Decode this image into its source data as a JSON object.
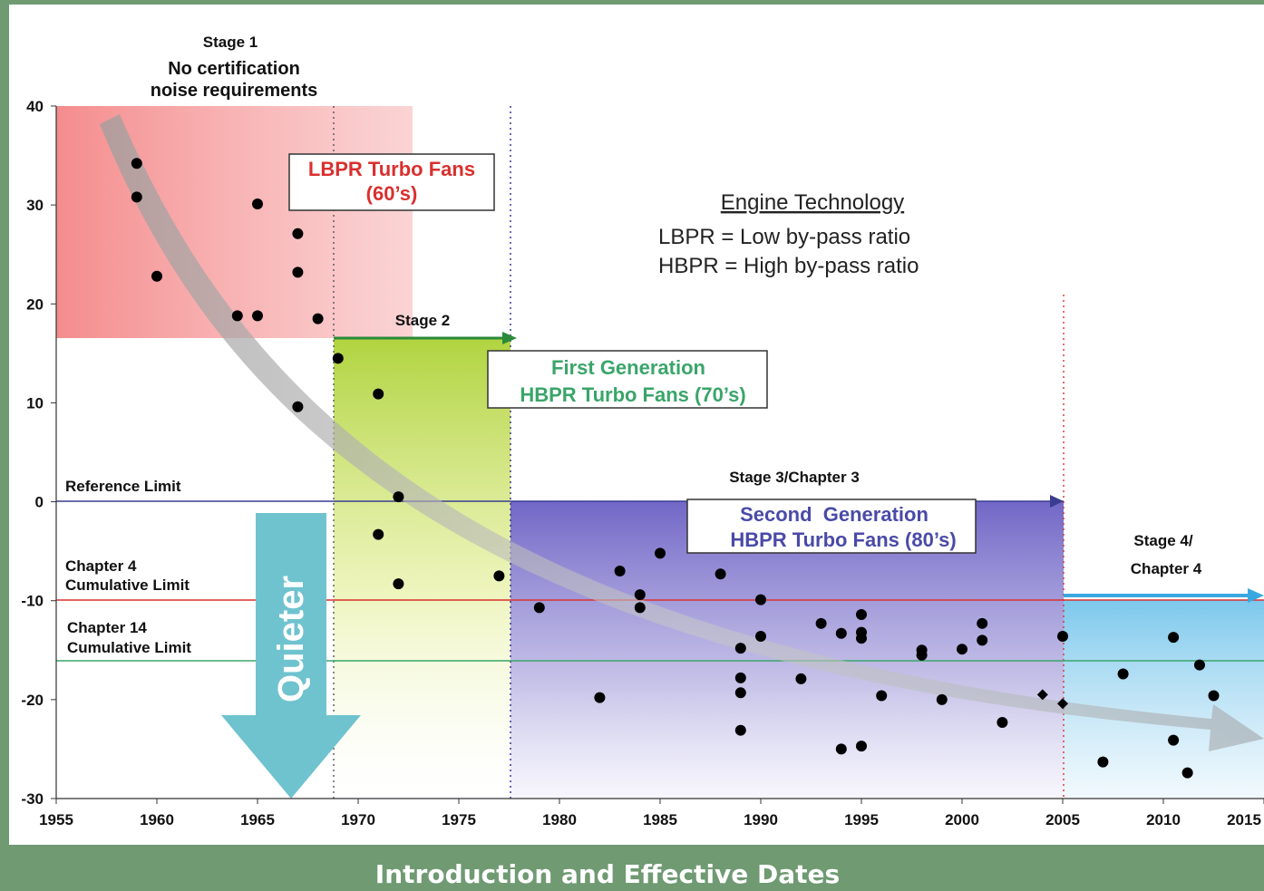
{
  "caption": "Introduction and Effective Dates",
  "chart_data": {
    "type": "scatter",
    "xlim": [
      1955,
      2015
    ],
    "ylim": [
      -30,
      40
    ],
    "x_ticks": [
      "1955",
      "1960",
      "1965",
      "1970",
      "1975",
      "1980",
      "1985",
      "1990",
      "1995",
      "2000",
      "2005",
      "2010",
      "2015"
    ],
    "y_ticks": [
      "40",
      "30",
      "20",
      "10",
      "0",
      "-10",
      "-20",
      "-30"
    ],
    "points": [
      {
        "x": 1959,
        "y": 34.2
      },
      {
        "x": 1959,
        "y": 30.8
      },
      {
        "x": 1960,
        "y": 22.8
      },
      {
        "x": 1964,
        "y": 18.8
      },
      {
        "x": 1965,
        "y": 18.8
      },
      {
        "x": 1965,
        "y": 30.1
      },
      {
        "x": 1967,
        "y": 27.1
      },
      {
        "x": 1967,
        "y": 23.2
      },
      {
        "x": 1968,
        "y": 18.5
      },
      {
        "x": 1967,
        "y": 9.6
      },
      {
        "x": 1969,
        "y": 14.5
      },
      {
        "x": 1971,
        "y": 10.9
      },
      {
        "x": 1972,
        "y": 0.5
      },
      {
        "x": 1971,
        "y": -3.3
      },
      {
        "x": 1972,
        "y": -8.3
      },
      {
        "x": 1977,
        "y": -7.5
      },
      {
        "x": 1979,
        "y": -10.7
      },
      {
        "x": 1982,
        "y": -19.8
      },
      {
        "x": 1983,
        "y": -7.0
      },
      {
        "x": 1984,
        "y": -9.4
      },
      {
        "x": 1984,
        "y": -10.7
      },
      {
        "x": 1985,
        "y": -5.2
      },
      {
        "x": 1988,
        "y": -7.3
      },
      {
        "x": 1989,
        "y": -14.8
      },
      {
        "x": 1989,
        "y": -17.8
      },
      {
        "x": 1989,
        "y": -19.3
      },
      {
        "x": 1989,
        "y": -23.1
      },
      {
        "x": 1990,
        "y": -9.9
      },
      {
        "x": 1990,
        "y": -13.6
      },
      {
        "x": 1992,
        "y": -17.9
      },
      {
        "x": 1993,
        "y": -12.3
      },
      {
        "x": 1994,
        "y": -13.3
      },
      {
        "x": 1994,
        "y": -25.0
      },
      {
        "x": 1995,
        "y": -11.4
      },
      {
        "x": 1995,
        "y": -13.2
      },
      {
        "x": 1995,
        "y": -13.8
      },
      {
        "x": 1995,
        "y": -24.7
      },
      {
        "x": 1996,
        "y": -19.6
      },
      {
        "x": 1998,
        "y": -15.0
      },
      {
        "x": 1998,
        "y": -15.5
      },
      {
        "x": 1999,
        "y": -20.0
      },
      {
        "x": 2000,
        "y": -14.9
      },
      {
        "x": 2001,
        "y": -12.3
      },
      {
        "x": 2001,
        "y": -14.0
      },
      {
        "x": 2002,
        "y": -22.3
      },
      {
        "x": 2005,
        "y": -13.6
      },
      {
        "x": 2007,
        "y": -26.3
      },
      {
        "x": 2008,
        "y": -17.4
      },
      {
        "x": 2010.5,
        "y": -13.7
      },
      {
        "x": 2010.5,
        "y": -24.1
      },
      {
        "x": 2011.2,
        "y": -27.4
      },
      {
        "x": 2011.8,
        "y": -16.5
      },
      {
        "x": 2012.5,
        "y": -19.6
      }
    ],
    "diamonds": [
      {
        "x": 2004,
        "y": -19.5
      },
      {
        "x": 2005,
        "y": -20.4
      }
    ],
    "reference_lines": [
      {
        "label": "Reference Limit",
        "y": 0,
        "color": "#3a3d8f"
      },
      {
        "label": "Chapter 4\nCumulative Limit",
        "y": -10,
        "color": "#d9302f"
      },
      {
        "label": "Chapter 14\nCumulative Limit",
        "y": -16,
        "color": "#3aa56a"
      }
    ],
    "regions": [
      {
        "name": "stage1",
        "x0": 1955,
        "x1": 1973,
        "y0": 16.5,
        "y1": 40,
        "color": "#f07a7a"
      },
      {
        "name": "stage2",
        "x0": 1969,
        "x1": 1978,
        "y0": -30,
        "y1": 16.5,
        "color": "#b8d94a"
      },
      {
        "name": "stage3",
        "x0": 1978,
        "x1": 2006,
        "y0": -30,
        "y1": 0,
        "color": "#7368c9"
      },
      {
        "name": "stage4",
        "x0": 2006,
        "x1": 2015,
        "y0": -30,
        "y1": -10,
        "color": "#7fc9ea"
      }
    ],
    "annotations": {
      "stage1": [
        "Stage 1",
        "No certification",
        "noise requirements"
      ],
      "stage2": "Stage 2",
      "stage3": "Stage 3/Chapter 3",
      "stage4": [
        "Stage 4/",
        "Chapter 4"
      ],
      "lbpr_box": [
        "LBPR Turbo Fans",
        "(60’s)"
      ],
      "first_gen_box": [
        "First Generation",
        "HBPR Turbo Fans (70’s)"
      ],
      "second_gen_box": [
        "Second  Generation",
        "HBPR Turbo Fans (80’s)"
      ],
      "engine_title": "Engine Technology",
      "engine_lines": [
        "LBPR =  Low by-pass ratio",
        "HBPR = High by-pass ratio"
      ],
      "quieter": "Quieter"
    },
    "colors": {
      "lbpr": "#d9302f",
      "first_gen": "#3aa56a",
      "second_gen": "#4a4aa8",
      "quieter_arrow": "#6fc3cf"
    }
  }
}
